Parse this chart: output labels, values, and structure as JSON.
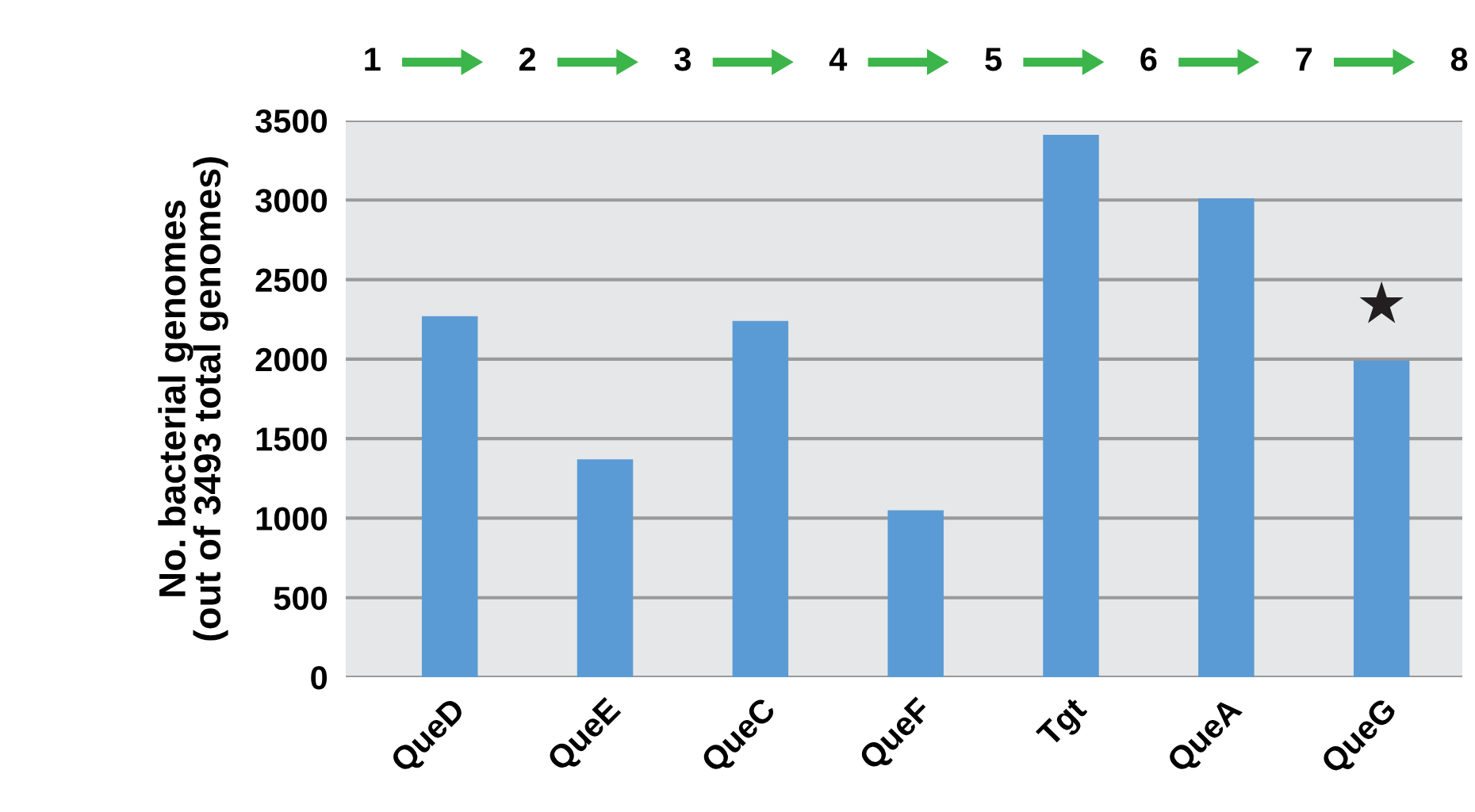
{
  "chart_data": {
    "type": "bar",
    "ylabel": "No. bacterial genomes\n(out of 3493 total genomes)",
    "categories": [
      "QueD",
      "QueE",
      "QueC",
      "QueF",
      "Tgt",
      "QueA",
      "QueG"
    ],
    "values": [
      2270,
      1370,
      2240,
      1050,
      3410,
      3010,
      1990
    ],
    "color": "#5b9bd5",
    "ylim": [
      0,
      3500
    ],
    "yticks": [
      0,
      500,
      1000,
      1500,
      2000,
      2500,
      3000,
      3500
    ],
    "grid": "y",
    "annotations": [
      "1",
      "2",
      "3",
      "4",
      "5",
      "6",
      "7",
      "8",
      "★"
    ]
  }
}
